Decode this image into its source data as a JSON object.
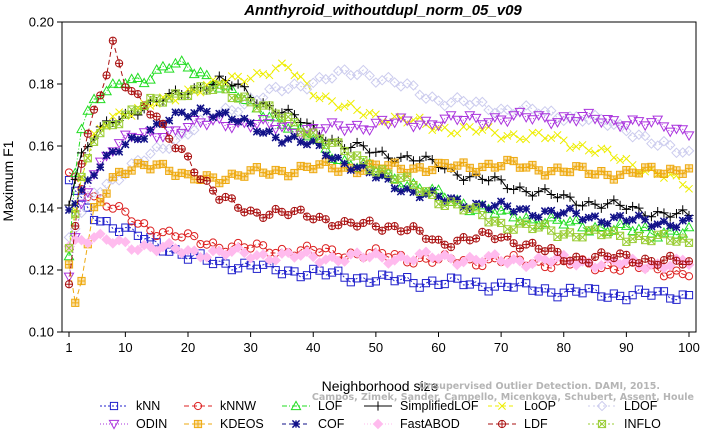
{
  "chart_data": {
    "type": "line",
    "title": "Annthyroid_withoutdupl_norm_05_v09",
    "xlabel": "Neighborhood size",
    "ylabel": "Maximum F1",
    "xlim": [
      1,
      100
    ],
    "ylim": [
      0.1,
      0.2
    ],
    "xticks": [
      1,
      10,
      20,
      30,
      40,
      50,
      60,
      70,
      80,
      90,
      100
    ],
    "yticks": [
      "0.10",
      "0.12",
      "0.14",
      "0.16",
      "0.18",
      "0.20"
    ],
    "grid": false,
    "legend_position": "bottom",
    "watermark": [
      "Campos, Zimek, Sander, Campello, Micenkova, Schubert, Assent, Houle",
      "Unsupervised Outlier Detection. DAMI, 2015."
    ],
    "series": [
      {
        "name": "kNN",
        "color": "#2222cc",
        "marker": "square",
        "dash": "2,2",
        "points": [
          [
            1,
            0.149
          ],
          [
            3,
            0.142
          ],
          [
            5,
            0.138
          ],
          [
            8,
            0.134
          ],
          [
            12,
            0.131
          ],
          [
            15,
            0.129
          ],
          [
            20,
            0.124
          ],
          [
            30,
            0.121
          ],
          [
            40,
            0.119
          ],
          [
            50,
            0.117
          ],
          [
            60,
            0.116
          ],
          [
            70,
            0.115
          ],
          [
            80,
            0.113
          ],
          [
            90,
            0.112
          ],
          [
            100,
            0.112
          ]
        ]
      },
      {
        "name": "kNNW",
        "color": "#dd2222",
        "marker": "circle",
        "dash": "5,3",
        "points": [
          [
            1,
            0.151
          ],
          [
            3,
            0.147
          ],
          [
            5,
            0.144
          ],
          [
            8,
            0.14
          ],
          [
            12,
            0.135
          ],
          [
            15,
            0.133
          ],
          [
            20,
            0.13
          ],
          [
            25,
            0.128
          ],
          [
            30,
            0.127
          ],
          [
            40,
            0.126
          ],
          [
            50,
            0.125
          ],
          [
            60,
            0.123
          ],
          [
            70,
            0.123
          ],
          [
            80,
            0.122
          ],
          [
            90,
            0.121
          ],
          [
            100,
            0.119
          ]
        ]
      },
      {
        "name": "LOF",
        "color": "#22dd22",
        "marker": "triangle-up",
        "dash": "5,2,1,2",
        "points": [
          [
            1,
            0.124
          ],
          [
            2,
            0.153
          ],
          [
            3,
            0.167
          ],
          [
            5,
            0.175
          ],
          [
            8,
            0.178
          ],
          [
            10,
            0.181
          ],
          [
            13,
            0.182
          ],
          [
            16,
            0.185
          ],
          [
            18,
            0.186
          ],
          [
            22,
            0.184
          ],
          [
            25,
            0.18
          ],
          [
            30,
            0.173
          ],
          [
            35,
            0.168
          ],
          [
            40,
            0.162
          ],
          [
            45,
            0.155
          ],
          [
            50,
            0.152
          ],
          [
            55,
            0.148
          ],
          [
            60,
            0.144
          ],
          [
            70,
            0.138
          ],
          [
            80,
            0.135
          ],
          [
            90,
            0.133
          ],
          [
            100,
            0.132
          ]
        ]
      },
      {
        "name": "SimplifiedLOF",
        "color": "#000000",
        "marker": "plus",
        "dash": "",
        "points": [
          [
            1,
            0.143
          ],
          [
            3,
            0.157
          ],
          [
            5,
            0.163
          ],
          [
            8,
            0.168
          ],
          [
            12,
            0.172
          ],
          [
            15,
            0.174
          ],
          [
            20,
            0.178
          ],
          [
            25,
            0.181
          ],
          [
            28,
            0.179
          ],
          [
            32,
            0.174
          ],
          [
            38,
            0.168
          ],
          [
            45,
            0.16
          ],
          [
            50,
            0.158
          ],
          [
            55,
            0.156
          ],
          [
            60,
            0.154
          ],
          [
            65,
            0.15
          ],
          [
            70,
            0.148
          ],
          [
            80,
            0.143
          ],
          [
            90,
            0.14
          ],
          [
            100,
            0.137
          ]
        ]
      },
      {
        "name": "LoOP",
        "color": "#eeee00",
        "marker": "x",
        "dash": "4,3",
        "points": [
          [
            1,
            0.127
          ],
          [
            3,
            0.15
          ],
          [
            5,
            0.162
          ],
          [
            8,
            0.17
          ],
          [
            12,
            0.172
          ],
          [
            16,
            0.174
          ],
          [
            20,
            0.178
          ],
          [
            25,
            0.18
          ],
          [
            30,
            0.183
          ],
          [
            36,
            0.185
          ],
          [
            40,
            0.178
          ],
          [
            45,
            0.172
          ],
          [
            50,
            0.17
          ],
          [
            55,
            0.168
          ],
          [
            60,
            0.166
          ],
          [
            70,
            0.164
          ],
          [
            80,
            0.162
          ],
          [
            90,
            0.155
          ],
          [
            100,
            0.147
          ]
        ]
      },
      {
        "name": "LDOF",
        "color": "#ccccee",
        "marker": "diamond",
        "dash": "2,3",
        "points": [
          [
            1,
            0.13
          ],
          [
            5,
            0.145
          ],
          [
            10,
            0.152
          ],
          [
            15,
            0.158
          ],
          [
            20,
            0.165
          ],
          [
            25,
            0.17
          ],
          [
            30,
            0.175
          ],
          [
            35,
            0.178
          ],
          [
            40,
            0.181
          ],
          [
            45,
            0.183
          ],
          [
            48,
            0.184
          ],
          [
            52,
            0.181
          ],
          [
            60,
            0.175
          ],
          [
            70,
            0.172
          ],
          [
            80,
            0.17
          ],
          [
            90,
            0.166
          ],
          [
            95,
            0.16
          ],
          [
            100,
            0.158
          ]
        ]
      },
      {
        "name": "ODIN",
        "color": "#aa33dd",
        "marker": "triangle-down",
        "dash": "1,2",
        "points": [
          [
            1,
            0.118
          ],
          [
            3,
            0.14
          ],
          [
            5,
            0.152
          ],
          [
            8,
            0.16
          ],
          [
            10,
            0.162
          ],
          [
            15,
            0.164
          ],
          [
            20,
            0.166
          ],
          [
            25,
            0.168
          ],
          [
            30,
            0.167
          ],
          [
            35,
            0.166
          ],
          [
            40,
            0.165
          ],
          [
            45,
            0.166
          ],
          [
            50,
            0.167
          ],
          [
            60,
            0.168
          ],
          [
            70,
            0.169
          ],
          [
            80,
            0.169
          ],
          [
            90,
            0.168
          ],
          [
            100,
            0.165
          ]
        ]
      },
      {
        "name": "KDEOS",
        "color": "#eeaa11",
        "marker": "square-cross",
        "dash": "5,3",
        "points": [
          [
            1,
            0.12
          ],
          [
            2,
            0.109
          ],
          [
            3,
            0.118
          ],
          [
            5,
            0.14
          ],
          [
            8,
            0.149
          ],
          [
            12,
            0.153
          ],
          [
            15,
            0.155
          ],
          [
            20,
            0.149
          ],
          [
            25,
            0.15
          ],
          [
            30,
            0.151
          ],
          [
            40,
            0.153
          ],
          [
            50,
            0.153
          ],
          [
            60,
            0.153
          ],
          [
            70,
            0.154
          ],
          [
            80,
            0.152
          ],
          [
            90,
            0.151
          ],
          [
            100,
            0.153
          ]
        ]
      },
      {
        "name": "COF",
        "color": "#111188",
        "marker": "star",
        "dash": "4,3",
        "points": [
          [
            1,
            0.14
          ],
          [
            3,
            0.146
          ],
          [
            5,
            0.152
          ],
          [
            8,
            0.157
          ],
          [
            12,
            0.163
          ],
          [
            16,
            0.168
          ],
          [
            20,
            0.17
          ],
          [
            23,
            0.172
          ],
          [
            26,
            0.17
          ],
          [
            30,
            0.166
          ],
          [
            35,
            0.163
          ],
          [
            40,
            0.16
          ],
          [
            45,
            0.155
          ],
          [
            50,
            0.15
          ],
          [
            55,
            0.146
          ],
          [
            60,
            0.143
          ],
          [
            70,
            0.14
          ],
          [
            80,
            0.138
          ],
          [
            90,
            0.136
          ],
          [
            100,
            0.135
          ]
        ]
      },
      {
        "name": "FastABOD",
        "color": "#ffbbee",
        "marker": "diamond-filled",
        "dash": "1,2",
        "points": [
          [
            1,
            0.129
          ],
          [
            3,
            0.13
          ],
          [
            5,
            0.13
          ],
          [
            8,
            0.129
          ],
          [
            12,
            0.128
          ],
          [
            15,
            0.127
          ],
          [
            20,
            0.126
          ],
          [
            30,
            0.125
          ],
          [
            40,
            0.124
          ],
          [
            50,
            0.124
          ],
          [
            60,
            0.124
          ],
          [
            70,
            0.123
          ],
          [
            80,
            0.123
          ],
          [
            90,
            0.122
          ],
          [
            100,
            0.122
          ]
        ]
      },
      {
        "name": "LDF",
        "color": "#aa1111",
        "marker": "circle-plus",
        "dash": "5,3",
        "points": [
          [
            1,
            0.115
          ],
          [
            2,
            0.135
          ],
          [
            3,
            0.155
          ],
          [
            5,
            0.17
          ],
          [
            7,
            0.183
          ],
          [
            8,
            0.193
          ],
          [
            9,
            0.187
          ],
          [
            10,
            0.181
          ],
          [
            12,
            0.176
          ],
          [
            15,
            0.168
          ],
          [
            18,
            0.16
          ],
          [
            20,
            0.157
          ],
          [
            22,
            0.15
          ],
          [
            25,
            0.143
          ],
          [
            30,
            0.139
          ],
          [
            35,
            0.138
          ],
          [
            40,
            0.138
          ],
          [
            45,
            0.134
          ],
          [
            50,
            0.135
          ],
          [
            55,
            0.133
          ],
          [
            60,
            0.129
          ],
          [
            65,
            0.13
          ],
          [
            70,
            0.131
          ],
          [
            80,
            0.124
          ],
          [
            90,
            0.124
          ],
          [
            100,
            0.122
          ]
        ]
      },
      {
        "name": "INFLO",
        "color": "#99cc33",
        "marker": "square-x",
        "dash": "2,2",
        "points": [
          [
            1,
            0.128
          ],
          [
            3,
            0.148
          ],
          [
            5,
            0.162
          ],
          [
            8,
            0.168
          ],
          [
            12,
            0.172
          ],
          [
            16,
            0.175
          ],
          [
            20,
            0.178
          ],
          [
            25,
            0.178
          ],
          [
            30,
            0.175
          ],
          [
            35,
            0.169
          ],
          [
            40,
            0.164
          ],
          [
            45,
            0.158
          ],
          [
            50,
            0.153
          ],
          [
            55,
            0.148
          ],
          [
            60,
            0.143
          ],
          [
            70,
            0.135
          ],
          [
            80,
            0.132
          ],
          [
            90,
            0.131
          ],
          [
            100,
            0.129
          ]
        ]
      }
    ]
  }
}
